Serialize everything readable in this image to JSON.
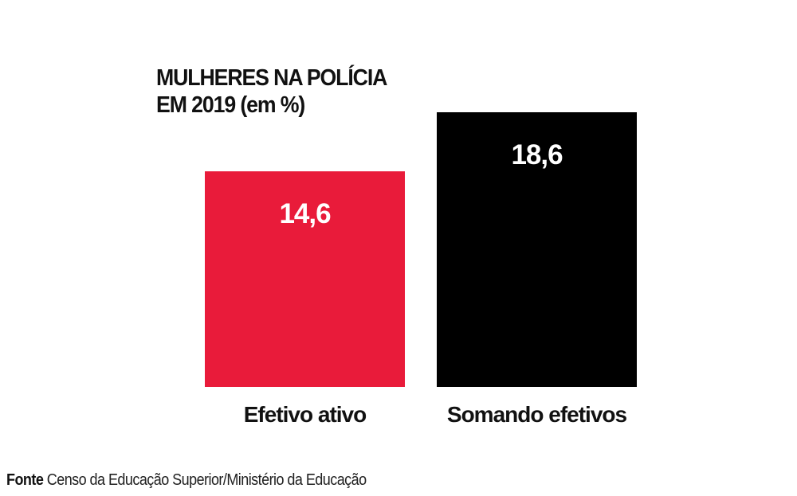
{
  "title_lines": [
    "MULHERES NA POLÍCIA",
    "EM 2019 (em %)"
  ],
  "source": {
    "label": "Fonte",
    "text": "Censo da Educação Superior/Ministério da Educação"
  },
  "colors": {
    "bar_active": "#e91b3a",
    "bar_total": "#000000",
    "value_label": "#ffffff",
    "category_label": "#111111"
  },
  "chart_data": {
    "type": "bar",
    "title": "MULHERES NA POLÍCIA EM 2019 (em %)",
    "categories": [
      "Efetivo ativo",
      "Somando efetivos"
    ],
    "values": [
      14.6,
      18.6
    ],
    "value_labels": [
      "14,6",
      "18,6"
    ],
    "bar_colors": [
      "#e91b3a",
      "#000000"
    ],
    "xlabel": "",
    "ylabel": "",
    "ylim": [
      0,
      18.6
    ],
    "grid": false,
    "legend": "none"
  }
}
